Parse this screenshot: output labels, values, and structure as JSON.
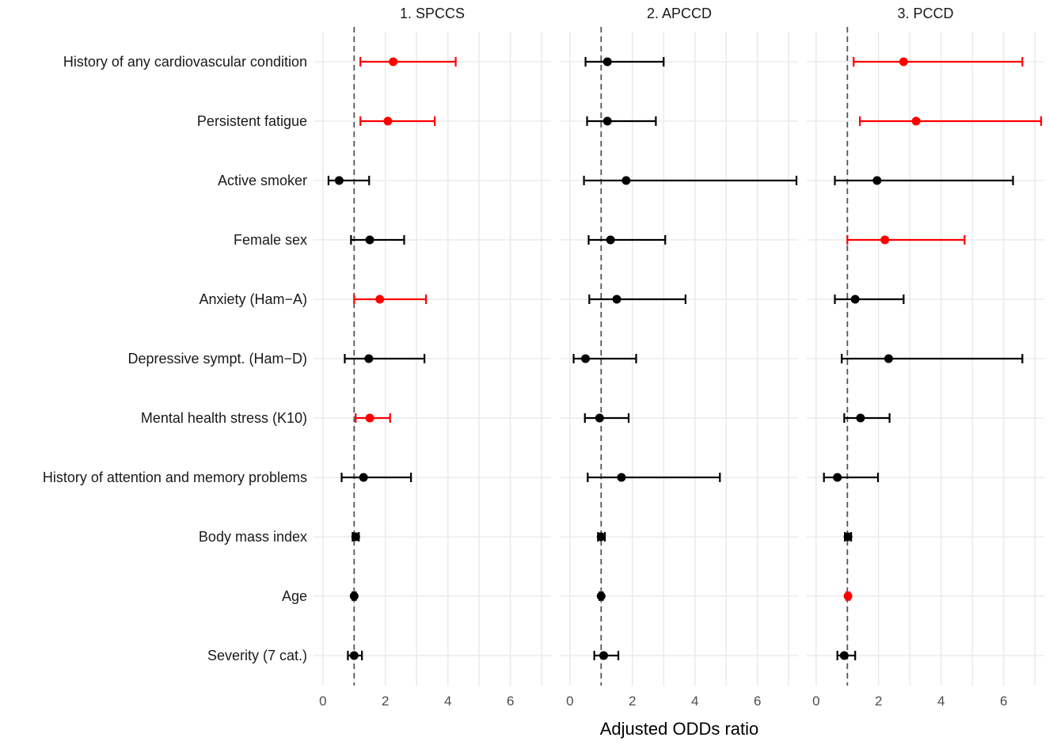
{
  "chart_data": {
    "type": "forest",
    "xlabel": "Adjusted ODDs ratio",
    "reference_line": 1,
    "xlim": [
      -0.3,
      7.3
    ],
    "x_ticks": [
      0,
      2,
      4,
      6
    ],
    "tick_labels": [
      "0",
      "2",
      "4",
      "6"
    ],
    "colors": {
      "significant": "#ff0000",
      "non_significant": "#000000",
      "reference": "#555555",
      "grid": "#ebebeb"
    },
    "categories": [
      "History of any cardiovascular condition",
      "Persistent fatigue",
      "Active smoker",
      "Female sex",
      "Anxiety (Ham−A)",
      "Depressive sympt. (Ham−D)",
      "Mental health stress (K10)",
      "History of attention and memory problems",
      "Body mass index",
      "Age",
      "Severity (7 cat.)"
    ],
    "panels": [
      {
        "title": "1. SPCCS",
        "points": [
          {
            "or": 2.25,
            "lo": 1.2,
            "hi": 4.25,
            "significant": true
          },
          {
            "or": 2.08,
            "lo": 1.2,
            "hi": 3.58,
            "significant": true
          },
          {
            "or": 0.52,
            "lo": 0.18,
            "hi": 1.48,
            "significant": false
          },
          {
            "or": 1.5,
            "lo": 0.9,
            "hi": 2.6,
            "significant": false
          },
          {
            "or": 1.82,
            "lo": 1.0,
            "hi": 3.3,
            "significant": true
          },
          {
            "or": 1.47,
            "lo": 0.7,
            "hi": 3.25,
            "significant": false
          },
          {
            "or": 1.5,
            "lo": 1.05,
            "hi": 2.15,
            "significant": true
          },
          {
            "or": 1.3,
            "lo": 0.6,
            "hi": 2.82,
            "significant": false
          },
          {
            "or": 1.05,
            "lo": 0.95,
            "hi": 1.15,
            "significant": false
          },
          {
            "or": 1.0,
            "lo": 0.95,
            "hi": 1.05,
            "significant": false
          },
          {
            "or": 1.0,
            "lo": 0.8,
            "hi": 1.25,
            "significant": false
          }
        ]
      },
      {
        "title": "2. APCCD",
        "points": [
          {
            "or": 1.2,
            "lo": 0.5,
            "hi": 3.0,
            "significant": false
          },
          {
            "or": 1.2,
            "lo": 0.55,
            "hi": 2.75,
            "significant": false
          },
          {
            "or": 1.8,
            "lo": 0.45,
            "hi": 7.25,
            "significant": false
          },
          {
            "or": 1.3,
            "lo": 0.6,
            "hi": 3.05,
            "significant": false
          },
          {
            "or": 1.5,
            "lo": 0.62,
            "hi": 3.7,
            "significant": false
          },
          {
            "or": 0.5,
            "lo": 0.12,
            "hi": 2.12,
            "significant": false
          },
          {
            "or": 0.95,
            "lo": 0.48,
            "hi": 1.88,
            "significant": false
          },
          {
            "or": 1.65,
            "lo": 0.57,
            "hi": 4.8,
            "significant": false
          },
          {
            "or": 1.0,
            "lo": 0.9,
            "hi": 1.12,
            "significant": false
          },
          {
            "or": 1.0,
            "lo": 0.95,
            "hi": 1.05,
            "significant": false
          },
          {
            "or": 1.08,
            "lo": 0.78,
            "hi": 1.55,
            "significant": false
          }
        ]
      },
      {
        "title": "3. PCCD",
        "points": [
          {
            "or": 2.8,
            "lo": 1.2,
            "hi": 6.6,
            "significant": true
          },
          {
            "or": 3.2,
            "lo": 1.4,
            "hi": 7.2,
            "significant": true
          },
          {
            "or": 1.95,
            "lo": 0.6,
            "hi": 6.3,
            "significant": false
          },
          {
            "or": 2.2,
            "lo": 1.0,
            "hi": 4.75,
            "significant": true
          },
          {
            "or": 1.25,
            "lo": 0.6,
            "hi": 2.8,
            "significant": false
          },
          {
            "or": 2.32,
            "lo": 0.82,
            "hi": 6.6,
            "significant": false
          },
          {
            "or": 1.42,
            "lo": 0.9,
            "hi": 2.35,
            "significant": false
          },
          {
            "or": 0.68,
            "lo": 0.25,
            "hi": 1.98,
            "significant": false
          },
          {
            "or": 1.02,
            "lo": 0.92,
            "hi": 1.12,
            "significant": false
          },
          {
            "or": 1.02,
            "lo": 0.97,
            "hi": 1.07,
            "significant": true
          },
          {
            "or": 0.9,
            "lo": 0.68,
            "hi": 1.25,
            "significant": false
          }
        ]
      }
    ]
  }
}
